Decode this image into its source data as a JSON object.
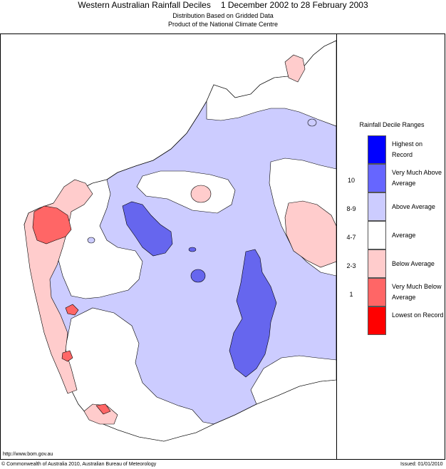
{
  "header": {
    "title": "Western Australian Rainfall Deciles",
    "period": "1 December 2002 to 28 February 2003",
    "subtitle1": "Distribution Based on Gridded Data",
    "subtitle2": "Product of the National Climate Centre"
  },
  "legend": {
    "title": "Rainfall Decile Ranges",
    "entries": [
      {
        "label": "Highest on Record",
        "range": "",
        "color": "#0000ff"
      },
      {
        "label": "Very Much Above Average",
        "range": "10",
        "color": "#6666ff"
      },
      {
        "label": "Above Average",
        "range": "8-9",
        "color": "#ccccff"
      },
      {
        "label": "Average",
        "range": "4-7",
        "color": "#ffffff"
      },
      {
        "label": "Below Average",
        "range": "2-3",
        "color": "#ffcccc"
      },
      {
        "label": "Very Much Below Average",
        "range": "1",
        "color": "#ff6666"
      },
      {
        "label": "Lowest on Record",
        "range": "",
        "color": "#ff0000"
      }
    ]
  },
  "footer": {
    "url": "http://www.bom.gov.au",
    "copyright": "© Commonwealth of Australia 2010, Australian Bureau of Meteorology",
    "issued": "Issued: 01/01/2010"
  }
}
